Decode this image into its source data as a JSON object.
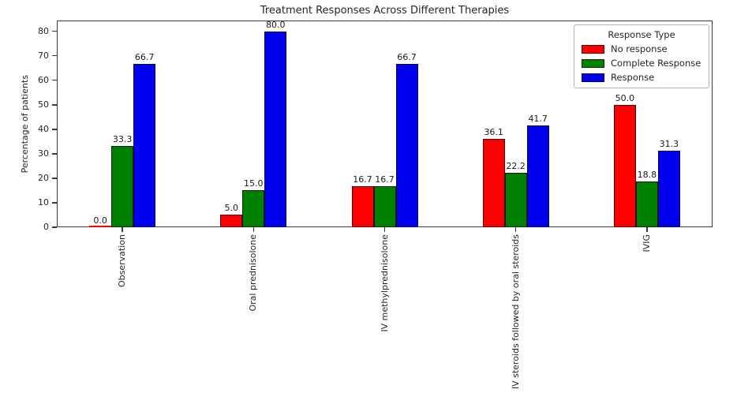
{
  "chart_data": {
    "type": "bar",
    "title": "Treatment Responses Across Different Therapies",
    "ylabel": "Percentage of patients",
    "xlabel": "",
    "categories": [
      "Observation",
      "Oral prednisolone",
      "IV methylprednisolone",
      "IV steroids followed by oral steroids",
      "IVIG"
    ],
    "series": [
      {
        "name": "No response",
        "color": "#ff0000",
        "values": [
          0.0,
          5.0,
          16.7,
          36.1,
          50.0
        ]
      },
      {
        "name": "Complete Response",
        "color": "#008000",
        "values": [
          33.3,
          15.0,
          16.7,
          22.2,
          18.8
        ]
      },
      {
        "name": "Response",
        "color": "#0000ee",
        "values": [
          66.7,
          80.0,
          66.7,
          41.7,
          31.3
        ]
      }
    ],
    "bar_value_labels": [
      [
        "0.0",
        "5.0",
        "16.7",
        "36.1",
        "50.0"
      ],
      [
        "33.3",
        "15.0",
        "16.7",
        "22.2",
        "18.8"
      ],
      [
        "66.7",
        "80.0",
        "66.7",
        "41.7",
        "31.3"
      ]
    ],
    "yticks": [
      0,
      10,
      20,
      30,
      40,
      50,
      60,
      70,
      80
    ],
    "ylim": [
      0,
      84.4
    ],
    "grid": false,
    "legend_title": "Response Type",
    "legend_position": "upper right"
  }
}
